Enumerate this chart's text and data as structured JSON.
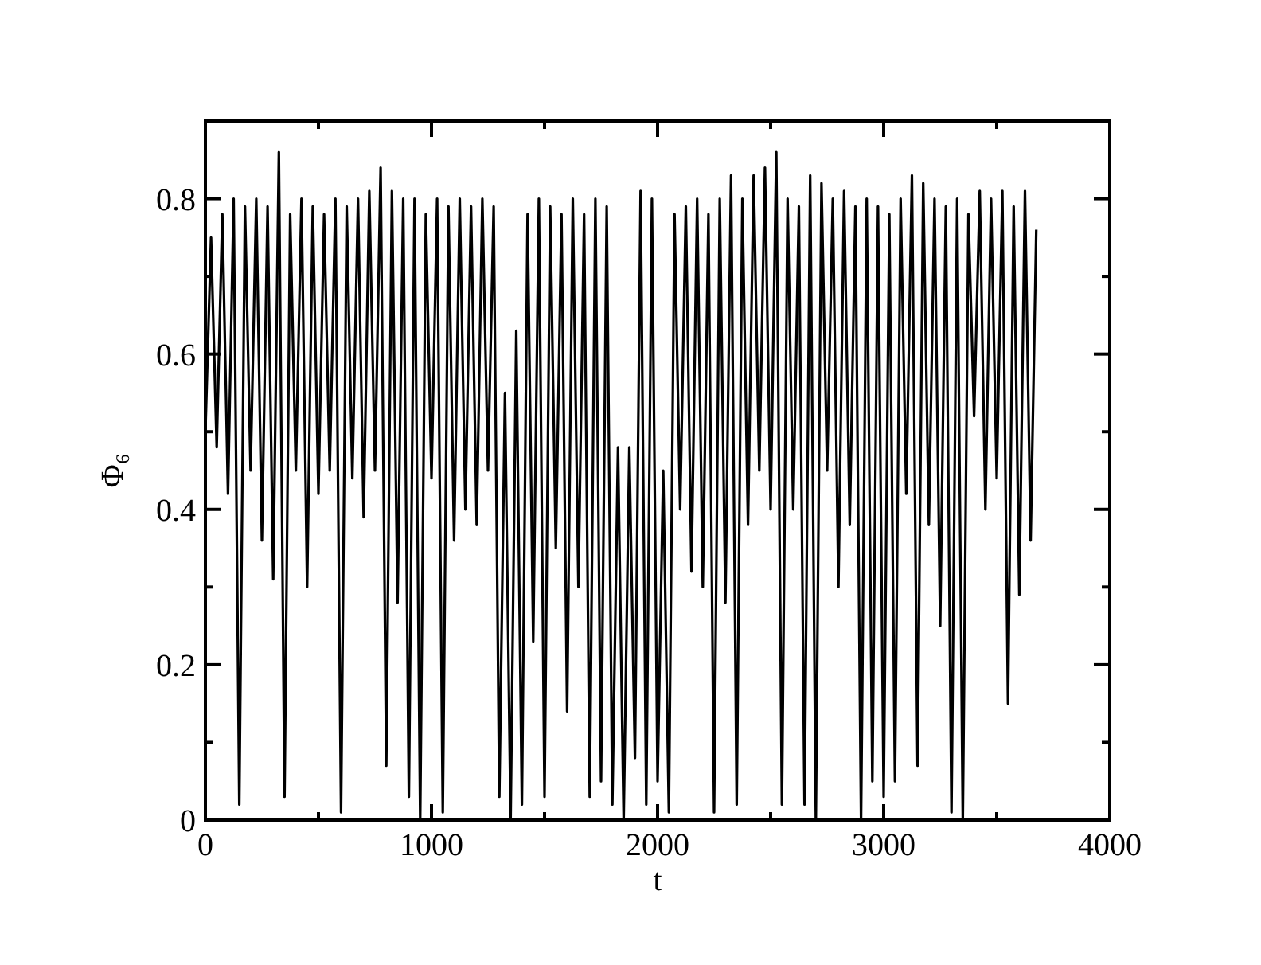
{
  "chart_data": {
    "type": "line",
    "xlabel": "t",
    "ylabel": "Φ₆",
    "xlim": [
      0,
      4000
    ],
    "ylim": [
      0,
      0.9
    ],
    "xticks": [
      0,
      {
        "value": 500,
        "label": null
      },
      1000,
      {
        "value": 1500,
        "label": null
      },
      2000,
      {
        "value": 2500,
        "label": null
      },
      3000,
      {
        "value": 3500,
        "label": null
      },
      4000
    ],
    "yticks": [
      0,
      {
        "value": 0.1,
        "label": null
      },
      0.2,
      {
        "value": 0.3,
        "label": null
      },
      0.4,
      {
        "value": 0.5,
        "label": null
      },
      0.6,
      {
        "value": 0.7,
        "label": null
      },
      0.8
    ],
    "grid": false,
    "marker": "none",
    "line_style": "solid",
    "x": [
      0,
      25,
      50,
      75,
      100,
      125,
      150,
      175,
      200,
      225,
      250,
      275,
      300,
      325,
      350,
      375,
      400,
      425,
      450,
      475,
      500,
      525,
      550,
      575,
      600,
      625,
      650,
      675,
      700,
      725,
      750,
      775,
      800,
      825,
      850,
      875,
      900,
      925,
      950,
      975,
      1000,
      1025,
      1050,
      1075,
      1100,
      1125,
      1150,
      1175,
      1200,
      1225,
      1250,
      1275,
      1300,
      1325,
      1350,
      1375,
      1400,
      1425,
      1450,
      1475,
      1500,
      1525,
      1550,
      1575,
      1600,
      1625,
      1650,
      1675,
      1700,
      1725,
      1750,
      1775,
      1800,
      1825,
      1850,
      1875,
      1900,
      1925,
      1950,
      1975,
      2000,
      2025,
      2050,
      2075,
      2100,
      2125,
      2150,
      2175,
      2200,
      2225,
      2250,
      2275,
      2300,
      2325,
      2350,
      2375,
      2400,
      2425,
      2450,
      2475,
      2500,
      2525,
      2550,
      2575,
      2600,
      2625,
      2650,
      2675,
      2700,
      2725,
      2750,
      2775,
      2800,
      2825,
      2850,
      2875,
      2900,
      2925,
      2950,
      2975,
      3000,
      3025,
      3050,
      3075,
      3100,
      3125,
      3150,
      3175,
      3200,
      3225,
      3250,
      3275,
      3300,
      3325,
      3350,
      3375,
      3400,
      3425,
      3450,
      3475,
      3500,
      3525,
      3550,
      3575,
      3600,
      3625,
      3650,
      3675
    ],
    "series": [
      {
        "color": "#000000",
        "values": [
          0.5,
          0.75,
          0.48,
          0.78,
          0.42,
          0.8,
          0.02,
          0.79,
          0.45,
          0.8,
          0.36,
          0.79,
          0.31,
          0.86,
          0.03,
          0.78,
          0.45,
          0.8,
          0.3,
          0.79,
          0.42,
          0.78,
          0.45,
          0.8,
          0.01,
          0.79,
          0.44,
          0.8,
          0.39,
          0.81,
          0.45,
          0.84,
          0.07,
          0.81,
          0.28,
          0.8,
          0.03,
          0.8,
          0.0,
          0.78,
          0.44,
          0.8,
          0.01,
          0.79,
          0.36,
          0.8,
          0.4,
          0.79,
          0.38,
          0.8,
          0.45,
          0.79,
          0.03,
          0.55,
          0.0,
          0.63,
          0.02,
          0.78,
          0.23,
          0.8,
          0.03,
          0.79,
          0.35,
          0.78,
          0.14,
          0.8,
          0.3,
          0.78,
          0.03,
          0.8,
          0.05,
          0.79,
          0.02,
          0.48,
          0.0,
          0.48,
          0.08,
          0.81,
          0.02,
          0.8,
          0.05,
          0.45,
          0.01,
          0.78,
          0.4,
          0.79,
          0.32,
          0.8,
          0.3,
          0.78,
          0.01,
          0.8,
          0.28,
          0.83,
          0.02,
          0.8,
          0.38,
          0.83,
          0.45,
          0.84,
          0.4,
          0.86,
          0.02,
          0.8,
          0.4,
          0.79,
          0.02,
          0.83,
          0.0,
          0.82,
          0.45,
          0.8,
          0.3,
          0.81,
          0.38,
          0.79,
          0.0,
          0.8,
          0.05,
          0.79,
          0.03,
          0.78,
          0.05,
          0.8,
          0.42,
          0.83,
          0.07,
          0.82,
          0.38,
          0.8,
          0.25,
          0.79,
          0.01,
          0.8,
          0.0,
          0.78,
          0.52,
          0.81,
          0.4,
          0.8,
          0.44,
          0.81,
          0.15,
          0.79,
          0.29,
          0.81,
          0.36,
          0.76
        ]
      }
    ]
  }
}
